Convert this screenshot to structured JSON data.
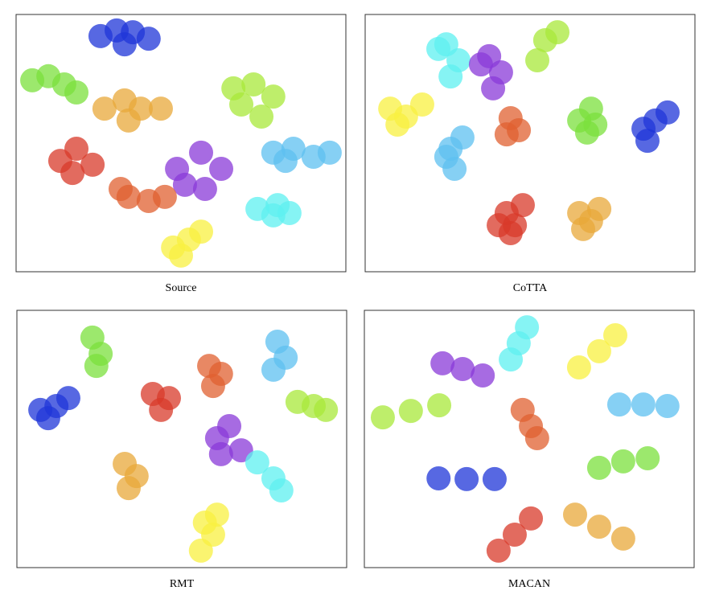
{
  "chart_data": [
    {
      "type": "scatter",
      "title": "Source",
      "xlim": [
        0,
        100
      ],
      "ylim": [
        0,
        100
      ],
      "series": [
        {
          "color": "#1f35d8",
          "x": [
            25.6,
            30.5,
            35.4,
            40.2,
            32.9
          ],
          "y": [
            91.6,
            93.8,
            93.1,
            90.6,
            88.4
          ]
        },
        {
          "color": "#7be03c",
          "x": [
            4.9,
            9.8,
            14.6,
            18.3
          ],
          "y": [
            74.4,
            76,
            72.8,
            69.7
          ]
        },
        {
          "color": "#e8a83a",
          "x": [
            26.8,
            32.9,
            37.8,
            34.1,
            43.9
          ],
          "y": [
            63.4,
            66.6,
            63.4,
            58.8,
            63.4
          ]
        },
        {
          "color": "#a8e83a",
          "x": [
            65.9,
            72,
            78,
            74.4,
            68.3
          ],
          "y": [
            71.3,
            72.8,
            68.1,
            60.3,
            65
          ]
        },
        {
          "color": "#d83a2a",
          "x": [
            13.4,
            18.3,
            23.2,
            17.1
          ],
          "y": [
            43.1,
            47.8,
            41.6,
            38.4
          ]
        },
        {
          "color": "#8a3ad8",
          "x": [
            48.8,
            56.1,
            62.2,
            57.3,
            51.2
          ],
          "y": [
            40,
            46.3,
            40,
            32.2,
            33.8
          ]
        },
        {
          "color": "#e06030",
          "x": [
            34.1,
            40.2,
            45.1,
            31.7
          ],
          "y": [
            29.1,
            27.5,
            29.1,
            32.2
          ]
        },
        {
          "color": "#5ef0f0",
          "x": [
            73.2,
            78,
            82.9,
            79.3
          ],
          "y": [
            24.4,
            21.9,
            22.8,
            25.9
          ]
        },
        {
          "color": "#5ec0f0",
          "x": [
            78,
            84.1,
            90.2,
            95.1,
            81.7
          ],
          "y": [
            46.3,
            47.8,
            44.7,
            46.3,
            43.1
          ]
        },
        {
          "color": "#f8f040",
          "x": [
            47.6,
            52.4,
            56.1,
            50
          ],
          "y": [
            9.4,
            12.5,
            15.6,
            6.3
          ]
        }
      ]
    },
    {
      "type": "scatter",
      "title": "CoTTA",
      "xlim": [
        0,
        100
      ],
      "ylim": [
        0,
        100
      ],
      "series": [
        {
          "color": "#5ef0f0",
          "x": [
            24.6,
            28.3,
            25.9,
            22.2
          ],
          "y": [
            88.4,
            82.2,
            75.9,
            86.6
          ]
        },
        {
          "color": "#8a3ad8",
          "x": [
            37.6,
            41.2,
            38.8,
            35.1
          ],
          "y": [
            83.8,
            77.5,
            71.3,
            80.6
          ]
        },
        {
          "color": "#a8e83a",
          "x": [
            54.6,
            58.3,
            52.2
          ],
          "y": [
            90,
            93.1,
            82.2
          ]
        },
        {
          "color": "#f8f040",
          "x": [
            7.6,
            12.4,
            17.3,
            9.8
          ],
          "y": [
            63.4,
            60.3,
            65,
            57.2
          ]
        },
        {
          "color": "#5ec0f0",
          "x": [
            25.9,
            27.1,
            29.5,
            24.6
          ],
          "y": [
            47.8,
            40,
            52.2,
            44.7
          ]
        },
        {
          "color": "#e06030",
          "x": [
            44.1,
            46.6,
            42.9
          ],
          "y": [
            59.7,
            55,
            53.4
          ]
        },
        {
          "color": "#7be03c",
          "x": [
            68.5,
            69.8,
            67.3,
            64.9
          ],
          "y": [
            63.4,
            57.2,
            54.1,
            58.8
          ]
        },
        {
          "color": "#1f35d8",
          "x": [
            84.4,
            88,
            91.7,
            85.6
          ],
          "y": [
            55.6,
            58.8,
            61.9,
            50.9
          ]
        },
        {
          "color": "#d83a2a",
          "x": [
            42.9,
            45.4,
            47.8,
            44.1,
            40.5
          ],
          "y": [
            22.8,
            18.1,
            25.9,
            15,
            18.1
          ]
        },
        {
          "color": "#e8a83a",
          "x": [
            64.9,
            68.5,
            66.1,
            71
          ],
          "y": [
            22.8,
            19.7,
            16.6,
            24.4
          ]
        }
      ]
    },
    {
      "type": "scatter",
      "title": "RMT",
      "xlim": [
        0,
        100
      ],
      "ylim": [
        0,
        100
      ],
      "series": [
        {
          "color": "#7be03c",
          "x": [
            22.9,
            25.4,
            24.1
          ],
          "y": [
            89.4,
            83.1,
            78.4
          ]
        },
        {
          "color": "#1f35d8",
          "x": [
            7.1,
            12,
            15.6,
            9.5
          ],
          "y": [
            61.3,
            62.8,
            65.9,
            58.1
          ]
        },
        {
          "color": "#d83a2a",
          "x": [
            41.2,
            46.1,
            43.7
          ],
          "y": [
            67.5,
            65.9,
            61.3
          ]
        },
        {
          "color": "#e06030",
          "x": [
            58.3,
            61.9,
            59.5
          ],
          "y": [
            78.4,
            75.3,
            70.6
          ]
        },
        {
          "color": "#5ec0f0",
          "x": [
            79,
            81.5,
            77.8
          ],
          "y": [
            87.8,
            81.6,
            76.9
          ]
        },
        {
          "color": "#a8e83a",
          "x": [
            85.1,
            90,
            93.7
          ],
          "y": [
            64.4,
            62.8,
            61.3
          ]
        },
        {
          "color": "#8a3ad8",
          "x": [
            60.7,
            64.4,
            68,
            61.9
          ],
          "y": [
            50.3,
            55,
            45.6,
            44.1
          ]
        },
        {
          "color": "#5ef0f0",
          "x": [
            72.9,
            77.8,
            80.2
          ],
          "y": [
            40.9,
            34.7,
            30
          ]
        },
        {
          "color": "#e8a83a",
          "x": [
            32.7,
            36.3,
            33.9
          ],
          "y": [
            40.3,
            35.6,
            30.9
          ]
        },
        {
          "color": "#f8f040",
          "x": [
            57,
            59.5,
            55.8,
            60.7
          ],
          "y": [
            17.5,
            12.8,
            6.6,
            20.6
          ]
        }
      ]
    },
    {
      "type": "scatter",
      "title": "MACAN",
      "xlim": [
        0,
        100
      ],
      "ylim": [
        0,
        100
      ],
      "series": [
        {
          "color": "#5ef0f0",
          "x": [
            44.4,
            46.8,
            49.3
          ],
          "y": [
            80.9,
            87.2,
            93.4
          ]
        },
        {
          "color": "#8a3ad8",
          "x": [
            23.7,
            29.8,
            35.9
          ],
          "y": [
            79.4,
            77.2,
            74.7
          ]
        },
        {
          "color": "#f8f040",
          "x": [
            65.1,
            71.2,
            76.1
          ],
          "y": [
            77.8,
            84.1,
            90.3
          ]
        },
        {
          "color": "#5ec0f0",
          "x": [
            77.3,
            84.6,
            91.9
          ],
          "y": [
            63.4,
            63.4,
            62.8
          ]
        },
        {
          "color": "#a8e83a",
          "x": [
            5.6,
            14.1,
            22.7
          ],
          "y": [
            58.4,
            60.9,
            63.1
          ]
        },
        {
          "color": "#e06030",
          "x": [
            48,
            50.5,
            52.4
          ],
          "y": [
            61.3,
            55,
            50.3
          ]
        },
        {
          "color": "#7be03c",
          "x": [
            71.2,
            78.5,
            85.9
          ],
          "y": [
            38.8,
            41.3,
            42.5
          ]
        },
        {
          "color": "#1f35d8",
          "x": [
            22.5,
            31,
            39.5
          ],
          "y": [
            34.7,
            34.4,
            34.4
          ]
        },
        {
          "color": "#d83a2a",
          "x": [
            40.7,
            45.6,
            50.5
          ],
          "y": [
            6.6,
            12.8,
            19.1
          ]
        },
        {
          "color": "#e8a83a",
          "x": [
            63.9,
            71.2,
            78.5
          ],
          "y": [
            20.6,
            15.9,
            11.3
          ]
        }
      ]
    }
  ]
}
